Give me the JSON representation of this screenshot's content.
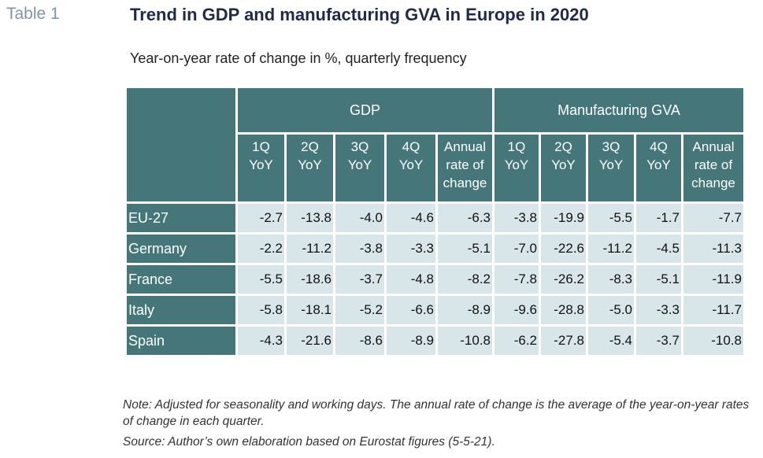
{
  "table_label": "Table 1",
  "title": "Trend in GDP and manufacturing GVA in Europe in 2020",
  "subtitle": "Year-on-year rate of change in %, quarterly frequency",
  "chart_data": {
    "type": "table",
    "groups": [
      "GDP",
      "Manufacturing GVA"
    ],
    "column_headers": [
      [
        "1Q",
        "YoY"
      ],
      [
        "2Q",
        "YoY"
      ],
      [
        "3Q",
        "YoY"
      ],
      [
        "4Q",
        "YoY"
      ],
      [
        "Annual",
        "rate of",
        "change"
      ],
      [
        "1Q",
        "YoY"
      ],
      [
        "2Q",
        "YoY"
      ],
      [
        "3Q",
        "YoY"
      ],
      [
        "4Q",
        "YoY"
      ],
      [
        "Annual",
        "rate of",
        "change"
      ]
    ],
    "rows": [
      {
        "label": "EU-27",
        "values": [
          "-2.7",
          "-13.8",
          "-4.0",
          "-4.6",
          "-6.3",
          "-3.8",
          "-19.9",
          "-5.5",
          "-1.7",
          "-7.7"
        ]
      },
      {
        "label": "Germany",
        "values": [
          "-2.2",
          "-11.2",
          "-3.8",
          "-3.3",
          "-5.1",
          "-7.0",
          "-22.6",
          "-11.2",
          "-4.5",
          "-11.3"
        ]
      },
      {
        "label": "France",
        "values": [
          "-5.5",
          "-18.6",
          "-3.7",
          "-4.8",
          "-8.2",
          "-7.8",
          "-26.2",
          "-8.3",
          "-5.1",
          "-11.9"
        ]
      },
      {
        "label": "Italy",
        "values": [
          "-5.8",
          "-18.1",
          "-5.2",
          "-6.6",
          "-8.9",
          "-9.6",
          "-28.8",
          "-5.0",
          "-3.3",
          "-11.7"
        ]
      },
      {
        "label": "Spain",
        "values": [
          "-4.3",
          "-21.6",
          "-8.6",
          "-8.9",
          "-10.8",
          "-6.2",
          "-27.8",
          "-5.4",
          "-3.7",
          "-10.8"
        ]
      }
    ]
  },
  "note": "Note: Adjusted for seasonality and working days. The annual rate of change is the average of the year-on-year rates of change in each quarter.",
  "source": "Source: Author’s own elaboration based on Eurostat figures (5-5-21).",
  "colors": {
    "header_bg": "#45767a",
    "cell_bg": "#d9e6e9",
    "table_label": "#7f94ad",
    "title": "#1f2a4a"
  }
}
